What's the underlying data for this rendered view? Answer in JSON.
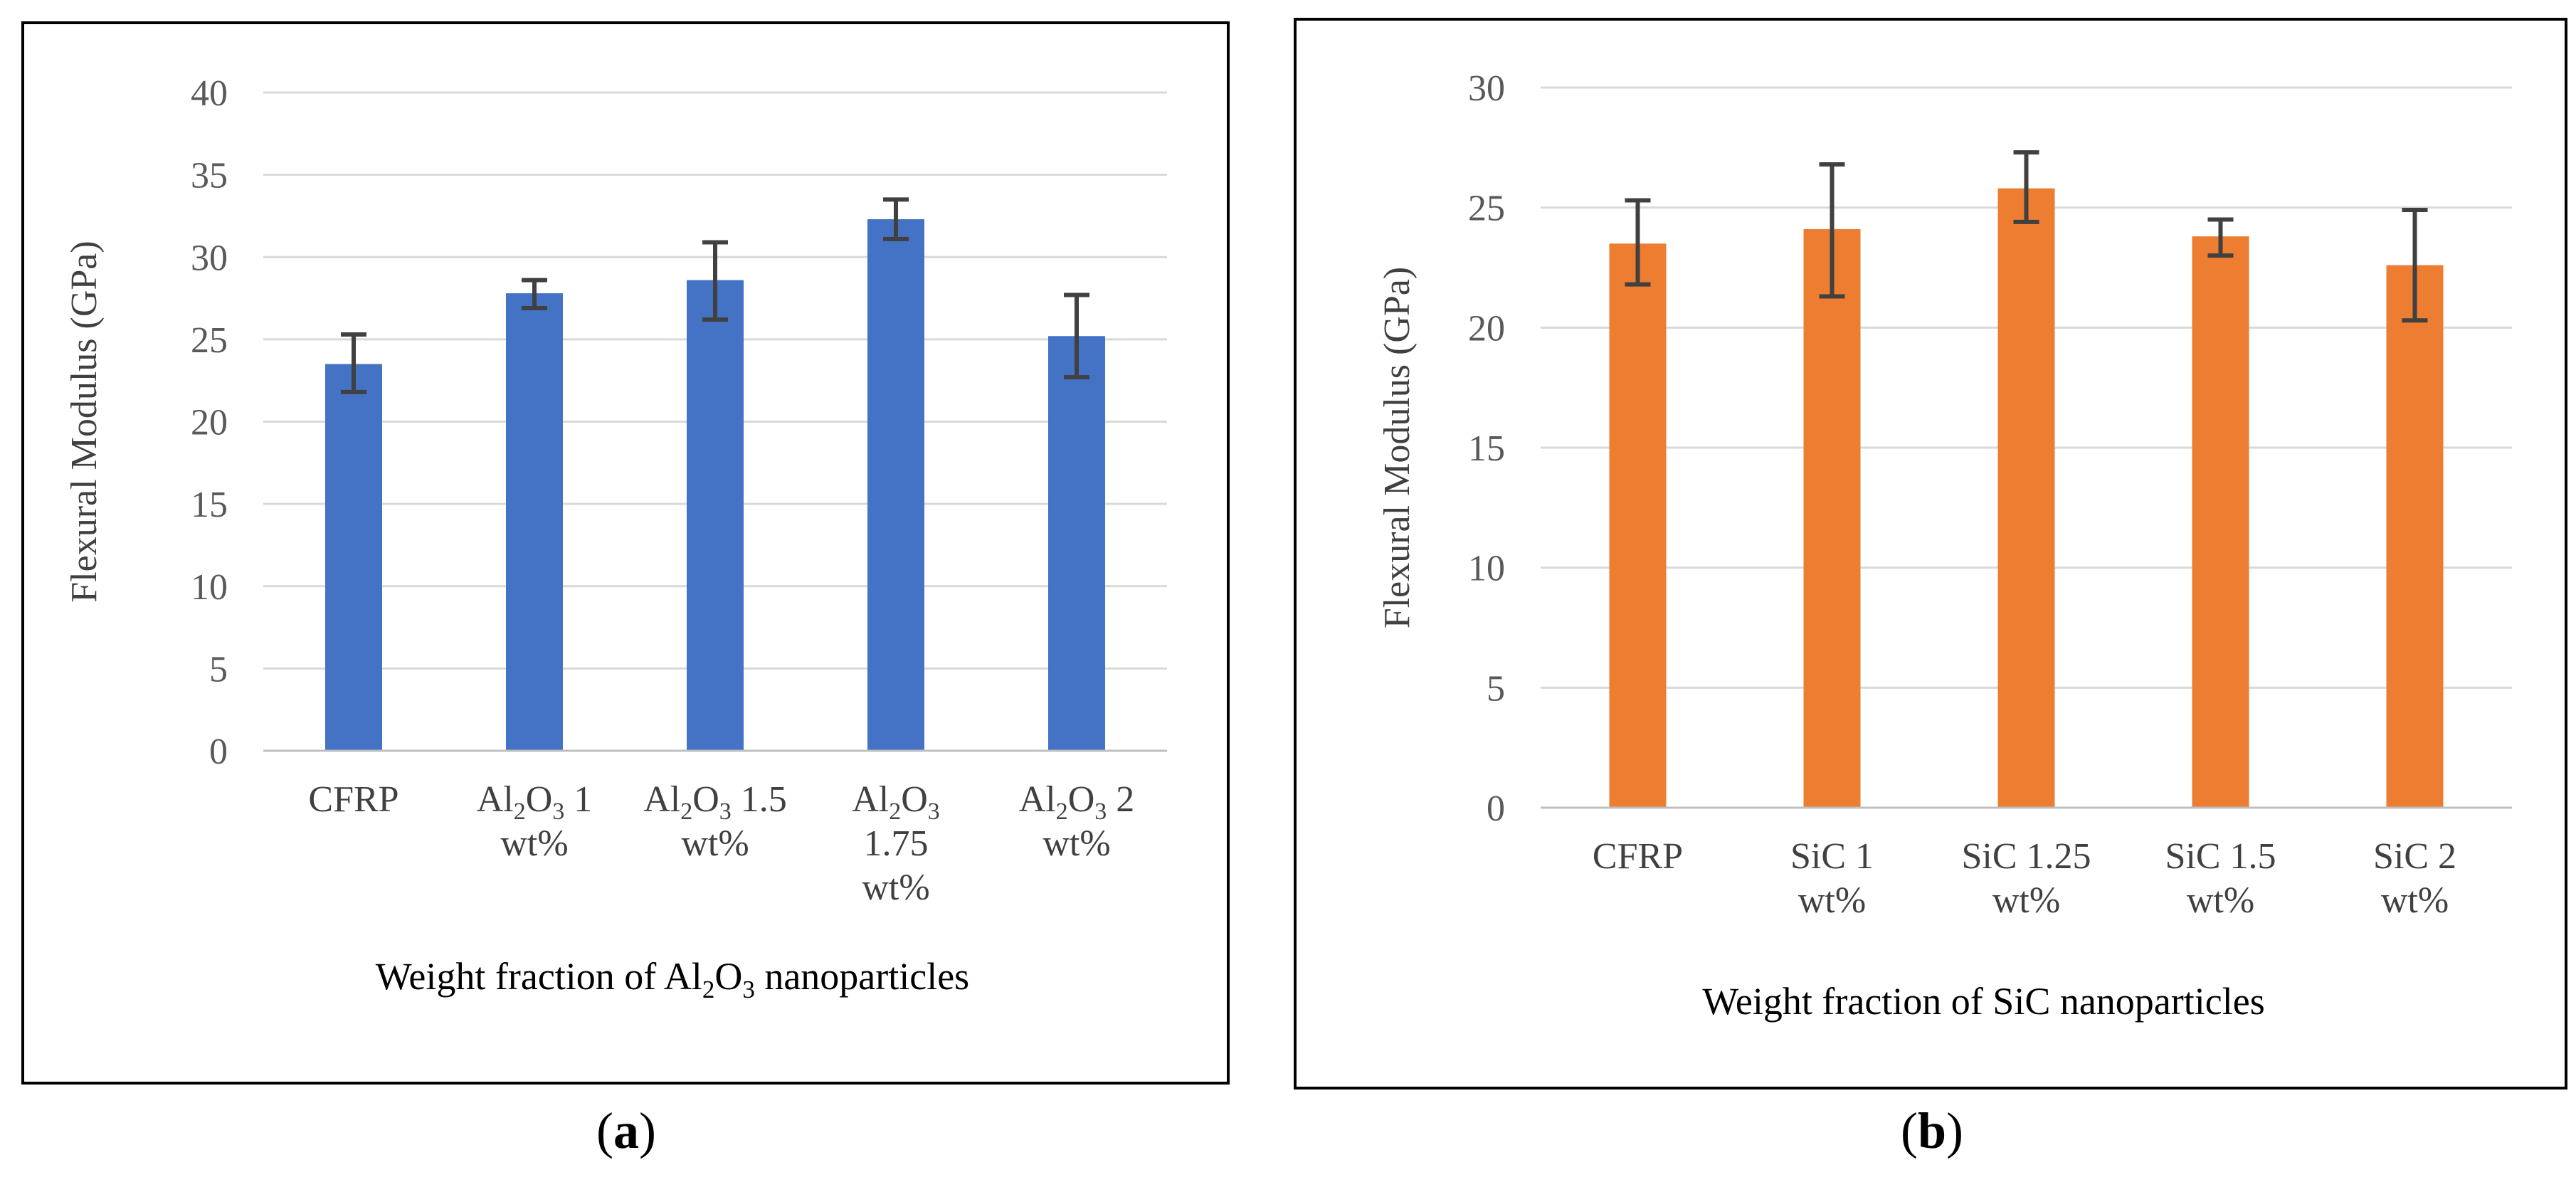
{
  "panels": [
    {
      "id": "a",
      "caption_letter": "a",
      "chart_data": {
        "type": "bar",
        "ylabel": "Flexural Modulus (GPa)",
        "xlabel_prefix": "Weight fraction of ",
        "xlabel_formula": [
          {
            "t": "Al"
          },
          {
            "t": "2",
            "sub": true
          },
          {
            "t": "O"
          },
          {
            "t": "3",
            "sub": true
          }
        ],
        "xlabel_suffix": " nanoparticles",
        "ylim": [
          0,
          40
        ],
        "yticks": [
          0,
          5,
          10,
          15,
          20,
          25,
          30,
          35,
          40
        ],
        "grid": true,
        "color": "#4472C4",
        "categories": [
          {
            "lines": [
              [
                {
                  "t": "CFRP"
                }
              ]
            ]
          },
          {
            "lines": [
              [
                {
                  "t": "Al"
                },
                {
                  "t": "2",
                  "sub": true
                },
                {
                  "t": "O"
                },
                {
                  "t": "3",
                  "sub": true
                },
                {
                  "t": " 1"
                }
              ],
              [
                {
                  "t": "wt%"
                }
              ]
            ]
          },
          {
            "lines": [
              [
                {
                  "t": "Al"
                },
                {
                  "t": "2",
                  "sub": true
                },
                {
                  "t": "O"
                },
                {
                  "t": "3",
                  "sub": true
                },
                {
                  "t": " 1.5"
                }
              ],
              [
                {
                  "t": "wt%"
                }
              ]
            ]
          },
          {
            "lines": [
              [
                {
                  "t": "Al"
                },
                {
                  "t": "2",
                  "sub": true
                },
                {
                  "t": "O"
                },
                {
                  "t": "3",
                  "sub": true
                }
              ],
              [
                {
                  "t": "1.75"
                }
              ],
              [
                {
                  "t": "wt%"
                }
              ]
            ]
          },
          {
            "lines": [
              [
                {
                  "t": "Al"
                },
                {
                  "t": "2",
                  "sub": true
                },
                {
                  "t": "O"
                },
                {
                  "t": "3",
                  "sub": true
                },
                {
                  "t": " 2"
                }
              ],
              [
                {
                  "t": "wt%"
                }
              ]
            ]
          }
        ],
        "values": [
          23.5,
          27.8,
          28.6,
          32.3,
          25.2
        ],
        "error_low": [
          21.8,
          26.9,
          26.2,
          31.1,
          22.7
        ],
        "error_high": [
          25.3,
          28.6,
          30.9,
          33.5,
          27.7
        ]
      }
    },
    {
      "id": "b",
      "caption_letter": "b",
      "chart_data": {
        "type": "bar",
        "ylabel": "Flexural Modulus (GPa)",
        "xlabel_prefix": "Weight fraction of ",
        "xlabel_formula": [
          {
            "t": "SiC"
          }
        ],
        "xlabel_suffix": " nanoparticles",
        "ylim": [
          0,
          30
        ],
        "yticks": [
          0,
          5,
          10,
          15,
          20,
          25,
          30
        ],
        "grid": true,
        "color": "#ED7D31",
        "categories": [
          {
            "lines": [
              [
                {
                  "t": "CFRP"
                }
              ]
            ]
          },
          {
            "lines": [
              [
                {
                  "t": "SiC 1"
                }
              ],
              [
                {
                  "t": "wt%"
                }
              ]
            ]
          },
          {
            "lines": [
              [
                {
                  "t": "SiC 1.25"
                }
              ],
              [
                {
                  "t": "wt%"
                }
              ]
            ]
          },
          {
            "lines": [
              [
                {
                  "t": "SiC 1.5"
                }
              ],
              [
                {
                  "t": "wt%"
                }
              ]
            ]
          },
          {
            "lines": [
              [
                {
                  "t": "SiC 2"
                }
              ],
              [
                {
                  "t": "wt%"
                }
              ]
            ]
          }
        ],
        "values": [
          23.5,
          24.1,
          25.8,
          23.8,
          22.6
        ],
        "error_low": [
          21.8,
          21.3,
          24.4,
          23.0,
          20.3
        ],
        "error_high": [
          25.3,
          26.8,
          27.3,
          24.5,
          24.9
        ]
      }
    }
  ]
}
